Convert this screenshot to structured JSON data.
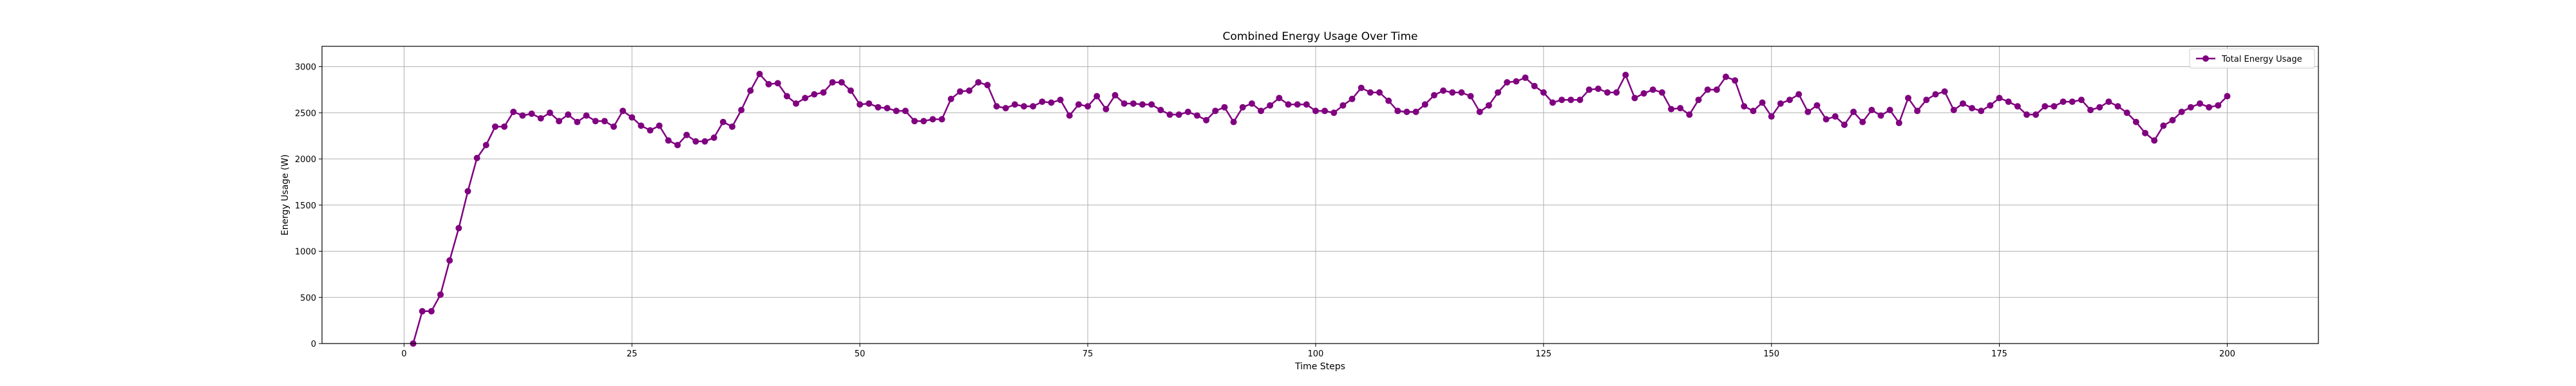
{
  "chart_data": {
    "type": "line",
    "title": "Combined Energy Usage Over Time",
    "xlabel": "Time Steps",
    "ylabel": "Energy Usage (W)",
    "xlim": [
      -9,
      210
    ],
    "ylim": [
      0,
      3220
    ],
    "xticks": [
      0,
      25,
      50,
      75,
      100,
      125,
      150,
      175,
      200
    ],
    "yticks": [
      0,
      500,
      1000,
      1500,
      2000,
      2500,
      3000
    ],
    "grid": true,
    "legend_position": "top-right",
    "series": [
      {
        "name": "Total Energy Usage",
        "color": "#800080",
        "marker": "circle",
        "x": [
          1,
          2,
          3,
          4,
          5,
          6,
          7,
          8,
          9,
          10,
          11,
          12,
          13,
          14,
          15,
          16,
          17,
          18,
          19,
          20,
          21,
          22,
          23,
          24,
          25,
          26,
          27,
          28,
          29,
          30,
          31,
          32,
          33,
          34,
          35,
          36,
          37,
          38,
          39,
          40,
          41,
          42,
          43,
          44,
          45,
          46,
          47,
          48,
          49,
          50,
          51,
          52,
          53,
          54,
          55,
          56,
          57,
          58,
          59,
          60,
          61,
          62,
          63,
          64,
          65,
          66,
          67,
          68,
          69,
          70,
          71,
          72,
          73,
          74,
          75,
          76,
          77,
          78,
          79,
          80,
          81,
          82,
          83,
          84,
          85,
          86,
          87,
          88,
          89,
          90,
          91,
          92,
          93,
          94,
          95,
          96,
          97,
          98,
          99,
          100,
          101,
          102,
          103,
          104,
          105,
          106,
          107,
          108,
          109,
          110,
          111,
          112,
          113,
          114,
          115,
          116,
          117,
          118,
          119,
          120,
          121,
          122,
          123,
          124,
          125,
          126,
          127,
          128,
          129,
          130,
          131,
          132,
          133,
          134,
          135,
          136,
          137,
          138,
          139,
          140,
          141,
          142,
          143,
          144,
          145,
          146,
          147,
          148,
          149,
          150,
          151,
          152,
          153,
          154,
          155,
          156,
          157,
          158,
          159,
          160,
          161,
          162,
          163,
          164,
          165,
          166,
          167,
          168,
          169,
          170,
          171,
          172,
          173,
          174,
          175,
          176,
          177,
          178,
          179,
          180,
          181,
          182,
          183,
          184,
          185,
          186,
          187,
          188,
          189,
          190,
          191,
          192,
          193,
          194,
          195,
          196,
          197,
          198,
          199,
          200
        ],
        "y": [
          0,
          350,
          350,
          530,
          900,
          1250,
          1650,
          2010,
          2150,
          2350,
          2350,
          2510,
          2470,
          2490,
          2440,
          2500,
          2410,
          2480,
          2400,
          2470,
          2410,
          2410,
          2350,
          2520,
          2450,
          2360,
          2310,
          2360,
          2200,
          2150,
          2260,
          2190,
          2190,
          2230,
          2400,
          2350,
          2530,
          2740,
          2920,
          2810,
          2820,
          2680,
          2600,
          2660,
          2700,
          2720,
          2830,
          2830,
          2740,
          2590,
          2600,
          2560,
          2550,
          2520,
          2520,
          2410,
          2410,
          2430,
          2430,
          2650,
          2730,
          2740,
          2830,
          2800,
          2570,
          2550,
          2590,
          2570,
          2570,
          2620,
          2610,
          2640,
          2470,
          2590,
          2570,
          2680,
          2540,
          2690,
          2600,
          2600,
          2590,
          2590,
          2530,
          2480,
          2480,
          2510,
          2470,
          2420,
          2520,
          2560,
          2400,
          2560,
          2600,
          2520,
          2580,
          2660,
          2590,
          2590,
          2590,
          2520,
          2520,
          2500,
          2580,
          2650,
          2770,
          2720,
          2720,
          2630,
          2520,
          2510,
          2510,
          2590,
          2690,
          2740,
          2720,
          2720,
          2680,
          2510,
          2580,
          2720,
          2830,
          2840,
          2880,
          2790,
          2720,
          2610,
          2640,
          2640,
          2640,
          2750,
          2760,
          2720,
          2720,
          2910,
          2660,
          2710,
          2750,
          2720,
          2540,
          2550,
          2480,
          2640,
          2750,
          2750,
          2890,
          2850,
          2570,
          2520,
          2610,
          2460,
          2600,
          2640,
          2700,
          2510,
          2580,
          2430,
          2460,
          2370,
          2510,
          2400,
          2530,
          2470,
          2530,
          2390,
          2660,
          2520,
          2640,
          2700,
          2730,
          2530,
          2600,
          2550,
          2520,
          2580,
          2660,
          2620,
          2570,
          2480,
          2480,
          2570,
          2570,
          2620,
          2620,
          2640,
          2530,
          2560,
          2620,
          2570,
          2500,
          2400,
          2280,
          2200,
          2360,
          2420,
          2510,
          2560,
          2600,
          2560,
          2580,
          2680
        ]
      }
    ]
  }
}
